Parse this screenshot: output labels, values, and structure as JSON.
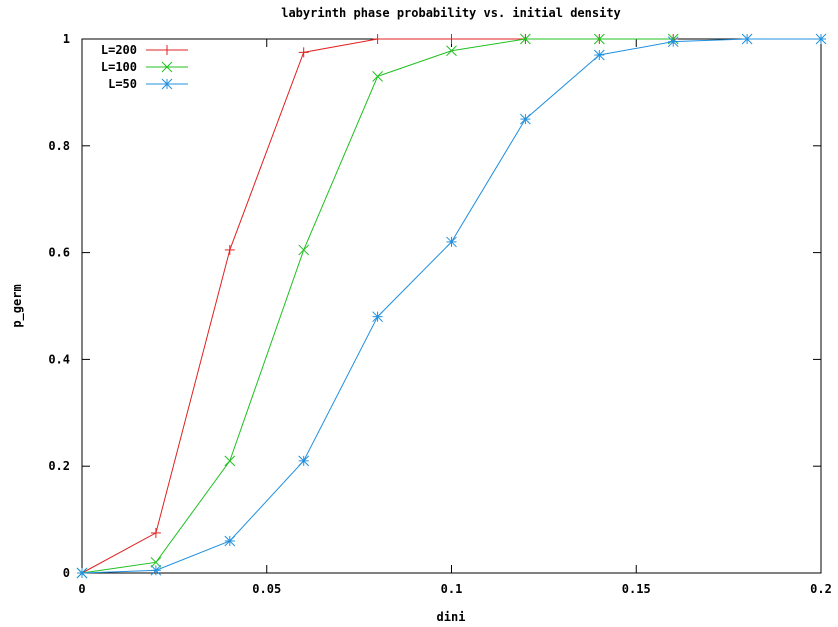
{
  "chart_data": {
    "type": "line",
    "title": "labyrinth phase probability vs. initial density",
    "xlabel": "dini",
    "ylabel": "p_germ",
    "xlim": [
      0,
      0.2
    ],
    "ylim": [
      0,
      1
    ],
    "x_ticks": [
      0,
      0.05,
      0.1,
      0.15,
      0.2
    ],
    "x_tick_labels": [
      "0",
      "0.05",
      "0.1",
      "0.15",
      "0.2"
    ],
    "y_ticks": [
      0,
      0.2,
      0.4,
      0.6,
      0.8,
      1
    ],
    "y_tick_labels": [
      "0",
      "0.2",
      "0.4",
      "0.6",
      "0.8",
      "1"
    ],
    "grid": false,
    "legend_position": "top-left",
    "series": [
      {
        "name": "L=200",
        "color": "#e02020",
        "marker": "plus",
        "x": [
          0,
          0.02,
          0.04,
          0.06,
          0.08,
          0.1,
          0.12,
          0.14,
          0.16
        ],
        "y": [
          0,
          0.075,
          0.605,
          0.975,
          1,
          1,
          1,
          1,
          1
        ]
      },
      {
        "name": "L=100",
        "color": "#20c020",
        "marker": "cross",
        "x": [
          0,
          0.02,
          0.04,
          0.06,
          0.08,
          0.1,
          0.12,
          0.14,
          0.16
        ],
        "y": [
          0,
          0.02,
          0.21,
          0.605,
          0.93,
          0.978,
          1,
          1,
          1
        ]
      },
      {
        "name": "L=50",
        "color": "#2090e0",
        "marker": "star",
        "x": [
          0,
          0.02,
          0.04,
          0.06,
          0.08,
          0.1,
          0.12,
          0.14,
          0.16,
          0.18,
          0.2
        ],
        "y": [
          0,
          0.005,
          0.06,
          0.21,
          0.48,
          0.62,
          0.85,
          0.97,
          0.995,
          1,
          1
        ]
      }
    ]
  }
}
